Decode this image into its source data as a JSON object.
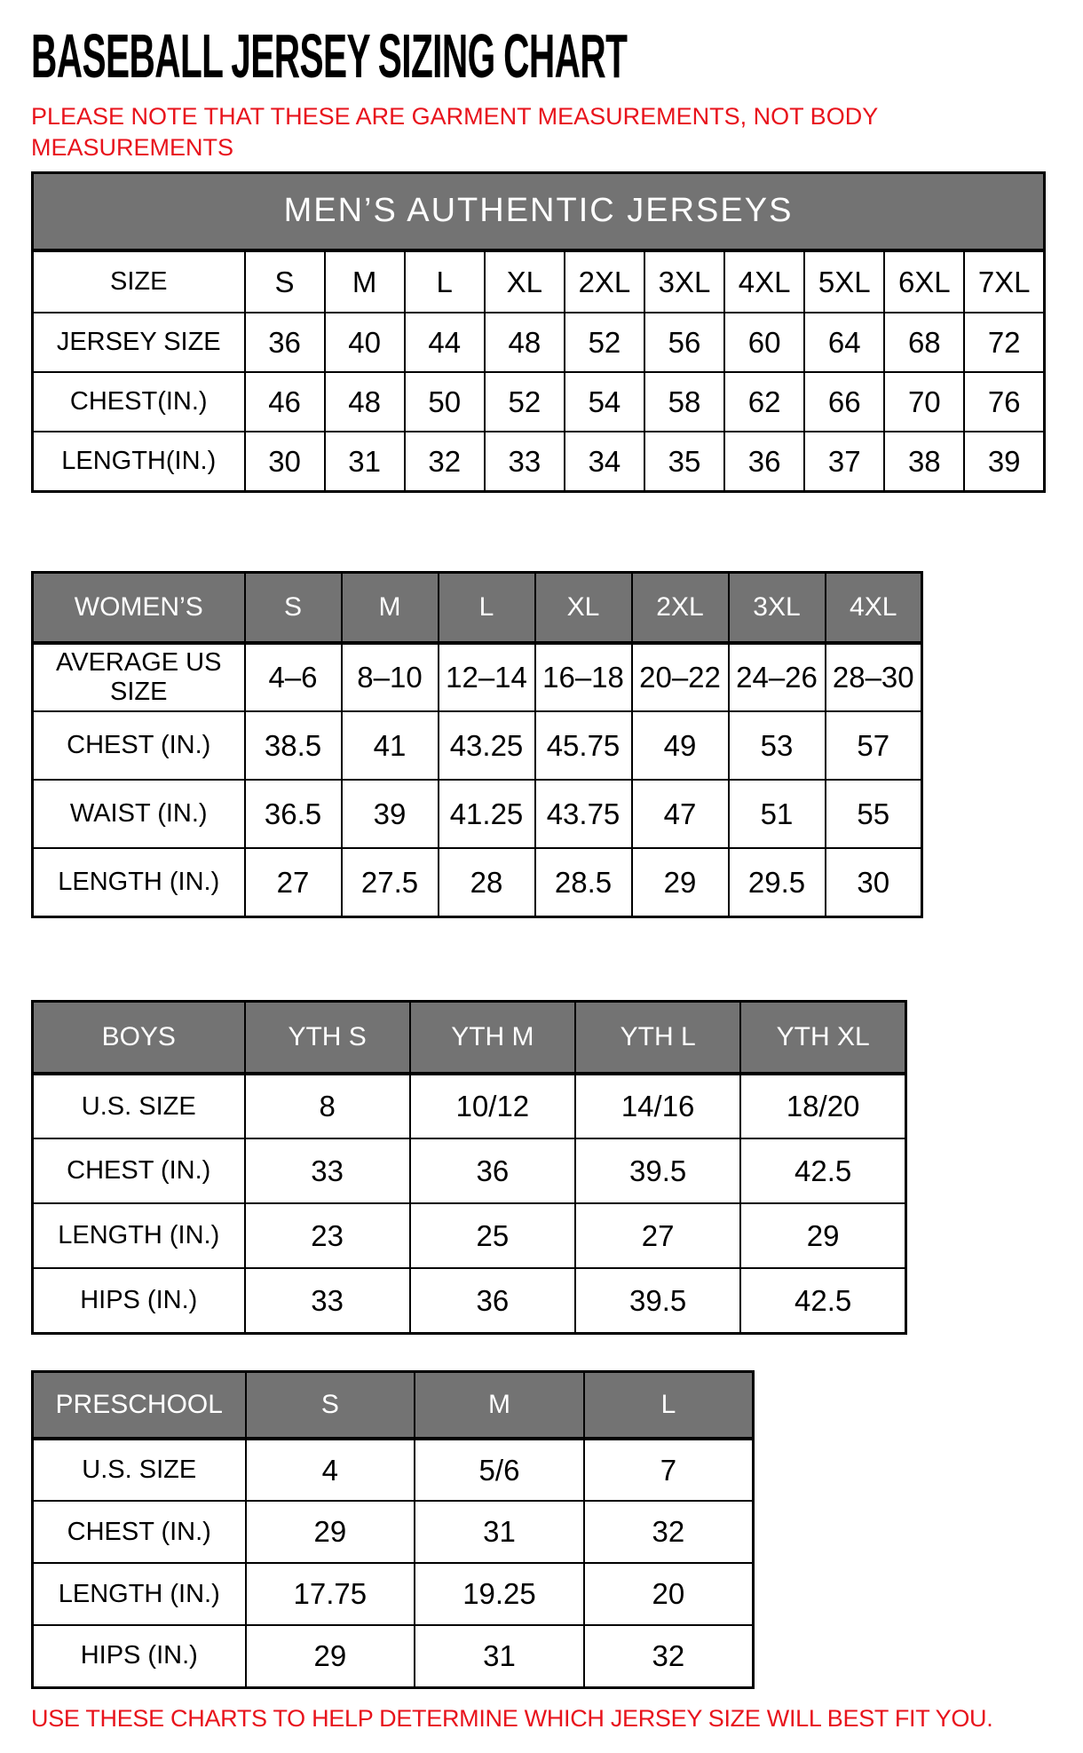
{
  "page": {
    "title": "BASEBALL JERSEY SIZING CHART",
    "note_line1": "PLEASE NOTE THAT THESE ARE GARMENT MEASUREMENTS, NOT BODY",
    "note_line2": "MEASUREMENTS",
    "footer": "USE THESE CHARTS TO HELP DETERMINE WHICH JERSEY SIZE WILL BEST FIT YOU."
  },
  "colors": {
    "accent_red": "#E8131C",
    "header_gray": "#737373",
    "header_text": "#FFFFFF",
    "border": "#000000"
  },
  "tables": [
    {
      "name": "mens",
      "merged_title": "MEN’S AUTHENTIC JERSEYS",
      "columns": [
        "SIZE",
        "S",
        "M",
        "L",
        "XL",
        "2XL",
        "3XL",
        "4XL",
        "5XL",
        "6XL",
        "7XL"
      ],
      "columns_gray": false,
      "rows": [
        {
          "label": "JERSEY SIZE",
          "values": [
            "36",
            "40",
            "44",
            "48",
            "52",
            "56",
            "60",
            "64",
            "68",
            "72"
          ]
        },
        {
          "label": "CHEST(IN.)",
          "values": [
            "46",
            "48",
            "50",
            "52",
            "54",
            "58",
            "62",
            "66",
            "70",
            "76"
          ]
        },
        {
          "label": "LENGTH(IN.)",
          "values": [
            "30",
            "31",
            "32",
            "33",
            "34",
            "35",
            "36",
            "37",
            "38",
            "39"
          ]
        }
      ]
    },
    {
      "name": "womens",
      "columns": [
        "WOMEN’S",
        "S",
        "M",
        "L",
        "XL",
        "2XL",
        "3XL",
        "4XL"
      ],
      "columns_gray": true,
      "rows": [
        {
          "label": "AVERAGE US SIZE",
          "values": [
            "4–6",
            "8–10",
            "12–14",
            "16–18",
            "20–22",
            "24–26",
            "28–30"
          ]
        },
        {
          "label": "CHEST (IN.)",
          "values": [
            "38.5",
            "41",
            "43.25",
            "45.75",
            "49",
            "53",
            "57"
          ]
        },
        {
          "label": "WAIST (IN.)",
          "values": [
            "36.5",
            "39",
            "41.25",
            "43.75",
            "47",
            "51",
            "55"
          ]
        },
        {
          "label": "LENGTH (IN.)",
          "values": [
            "27",
            "27.5",
            "28",
            "28.5",
            "29",
            "29.5",
            "30"
          ]
        }
      ]
    },
    {
      "name": "boys",
      "columns": [
        "BOYS",
        "YTH S",
        "YTH M",
        "YTH L",
        "YTH XL"
      ],
      "columns_gray": true,
      "rows": [
        {
          "label": "U.S. SIZE",
          "values": [
            "8",
            "10/12",
            "14/16",
            "18/20"
          ]
        },
        {
          "label": "CHEST (IN.)",
          "values": [
            "33",
            "36",
            "39.5",
            "42.5"
          ]
        },
        {
          "label": "LENGTH (IN.)",
          "values": [
            "23",
            "25",
            "27",
            "29"
          ]
        },
        {
          "label": "HIPS (IN.)",
          "values": [
            "33",
            "36",
            "39.5",
            "42.5"
          ]
        }
      ]
    },
    {
      "name": "preschool",
      "columns": [
        "PRESCHOOL",
        "S",
        "M",
        "L"
      ],
      "columns_gray": true,
      "rows": [
        {
          "label": "U.S. SIZE",
          "values": [
            "4",
            "5/6",
            "7"
          ]
        },
        {
          "label": "CHEST (IN.)",
          "values": [
            "29",
            "31",
            "32"
          ]
        },
        {
          "label": "LENGTH (IN.)",
          "values": [
            "17.75",
            "19.25",
            "20"
          ]
        },
        {
          "label": "HIPS (IN.)",
          "values": [
            "29",
            "31",
            "32"
          ]
        }
      ]
    }
  ]
}
